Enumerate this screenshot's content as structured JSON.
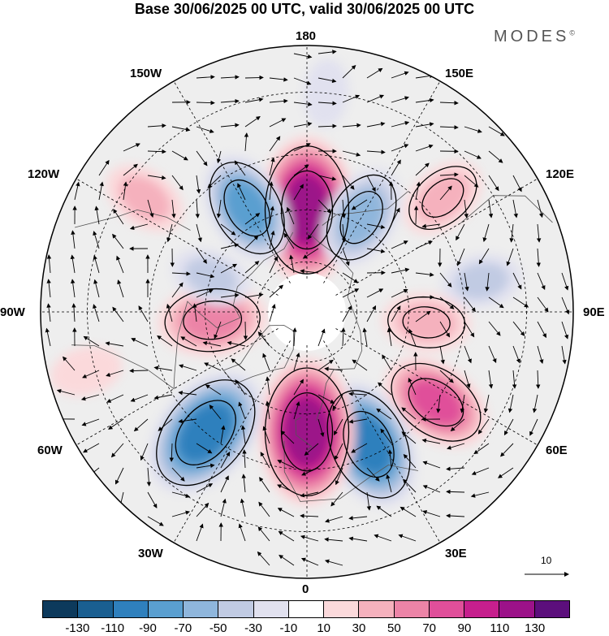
{
  "title": "Base 30/06/2025 00 UTC, valid 30/06/2025 00 UTC",
  "logo": {
    "text": "MODES",
    "mark": "©"
  },
  "longitude_labels": [
    "180",
    "150E",
    "120E",
    "90E",
    "60E",
    "30E",
    "0",
    "30W",
    "60W",
    "90W",
    "120W",
    "150W"
  ],
  "reference_vector": {
    "label": "10"
  },
  "colorbar": {
    "colors": [
      "#0d3a5c",
      "#1a5f91",
      "#2f80bd",
      "#5a9fd0",
      "#8fb6dc",
      "#c1cbe3",
      "#e1e1ef",
      "#ffffff",
      "#fbd9db",
      "#f5b1bd",
      "#ec84a7",
      "#e04f9a",
      "#c61f8d",
      "#9c1289",
      "#5c0f7c"
    ],
    "tick_labels": [
      "-130",
      "-110",
      "-90",
      "-70",
      "-50",
      "-30",
      "-10",
      "10",
      "30",
      "50",
      "70",
      "90",
      "110",
      "130"
    ]
  },
  "map": {
    "projection": "north-polar-stereographic",
    "grid": true,
    "coastlines": true,
    "anomaly_field": {
      "units_note": "",
      "centers": [
        {
          "lon": 180,
          "lat": 60,
          "value": 110
        },
        {
          "lon": -150,
          "lat": 55,
          "value": -70
        },
        {
          "lon": 150,
          "lat": 58,
          "value": -60
        },
        {
          "lon": 130,
          "lat": 40,
          "value": 40
        },
        {
          "lon": 100,
          "lat": 40,
          "value": -30
        },
        {
          "lon": 85,
          "lat": 55,
          "value": 40
        },
        {
          "lon": 55,
          "lat": 45,
          "value": 70
        },
        {
          "lon": 25,
          "lat": 48,
          "value": -90
        },
        {
          "lon": 0,
          "lat": 55,
          "value": 110
        },
        {
          "lon": -40,
          "lat": 45,
          "value": -100
        },
        {
          "lon": -85,
          "lat": 62,
          "value": 65
        },
        {
          "lon": -110,
          "lat": 60,
          "value": -30
        },
        {
          "lon": -125,
          "lat": 35,
          "value": 35
        },
        {
          "lon": -75,
          "lat": 28,
          "value": 20
        },
        {
          "lon": 175,
          "lat": 30,
          "value": -15
        }
      ]
    }
  }
}
